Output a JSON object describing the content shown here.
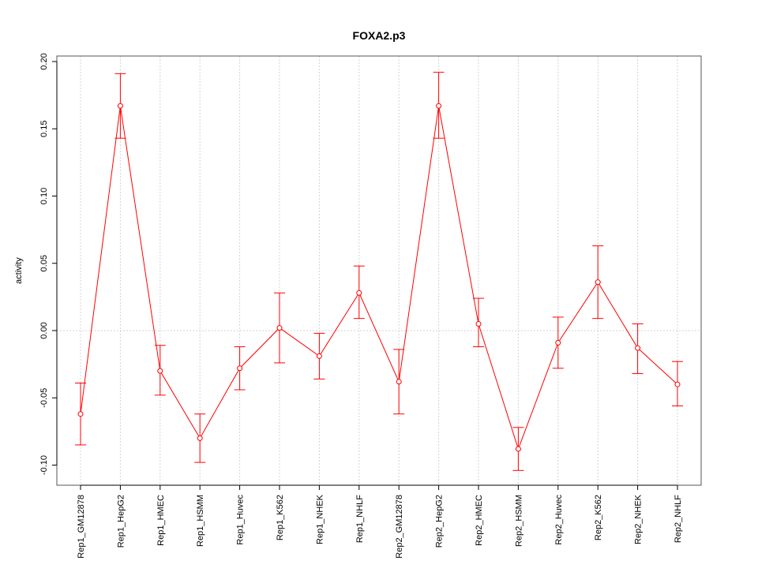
{
  "chart_data": {
    "type": "line",
    "title": "FOXA2.p3",
    "xlabel": "",
    "ylabel": "activity",
    "ylim": [
      -0.115,
      0.205
    ],
    "yticks": [
      -0.1,
      -0.05,
      0.0,
      0.05,
      0.1,
      0.15,
      0.2
    ],
    "ytick_labels": [
      "-0.10",
      "-0.05",
      "0.00",
      "0.05",
      "0.10",
      "0.15",
      "0.20"
    ],
    "grid": true,
    "color": "#ff0000",
    "categories": [
      "Rep1_GM12878",
      "Rep1_HepG2",
      "Rep1_HMEC",
      "Rep1_HSMM",
      "Rep1_Huvec",
      "Rep1_K562",
      "Rep1_NHEK",
      "Rep1_NHLF",
      "Rep2_GM12878",
      "Rep2_HepG2",
      "Rep2_HMEC",
      "Rep2_HSMM",
      "Rep2_Huvec",
      "Rep2_K562",
      "Rep2_NHEK",
      "Rep2_NHLF"
    ],
    "values": [
      -0.062,
      0.167,
      -0.03,
      -0.08,
      -0.028,
      0.002,
      -0.019,
      0.028,
      -0.038,
      0.167,
      0.005,
      -0.088,
      -0.009,
      0.036,
      -0.013,
      -0.04
    ],
    "upper": [
      -0.039,
      0.191,
      -0.011,
      -0.062,
      -0.012,
      0.028,
      -0.002,
      0.048,
      -0.014,
      0.192,
      0.024,
      -0.072,
      0.01,
      0.063,
      0.005,
      -0.023
    ],
    "lower": [
      -0.085,
      0.143,
      -0.048,
      -0.098,
      -0.044,
      -0.024,
      -0.036,
      0.009,
      -0.062,
      0.143,
      -0.012,
      -0.104,
      -0.028,
      0.009,
      -0.032,
      -0.056
    ]
  }
}
